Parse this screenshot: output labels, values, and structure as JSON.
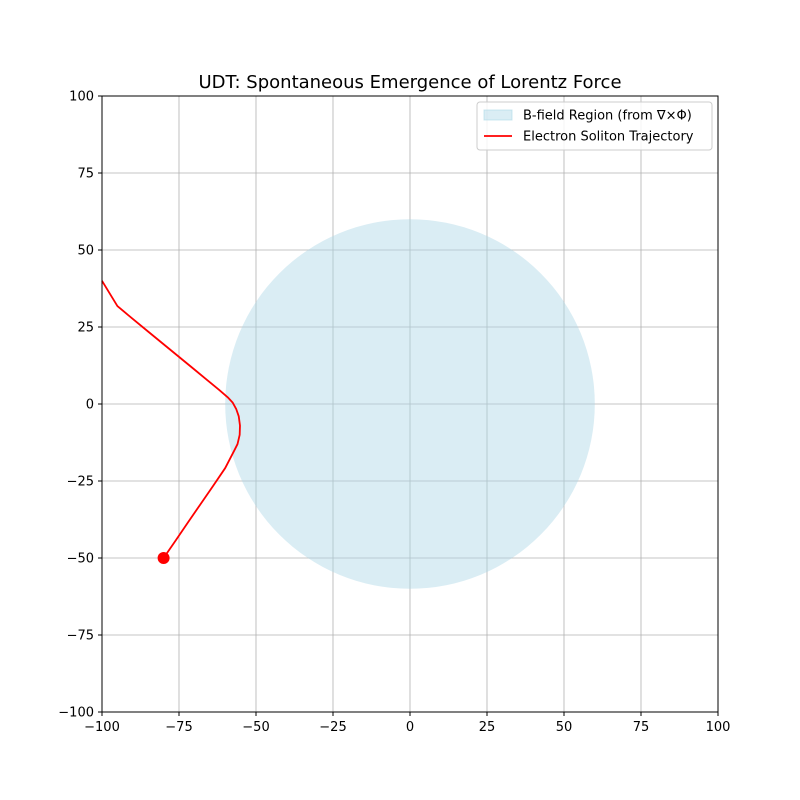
{
  "chart_data": {
    "type": "line",
    "title": "UDT: Spontaneous Emergence of Lorentz Force",
    "xlabel": "",
    "ylabel": "",
    "xlim": [
      -100,
      100
    ],
    "ylim": [
      -100,
      100
    ],
    "x_ticks": [
      -100,
      -75,
      -50,
      -25,
      0,
      25,
      50,
      75,
      100
    ],
    "y_ticks": [
      -100,
      -75,
      -50,
      -25,
      0,
      25,
      50,
      75,
      100
    ],
    "x_tick_labels": [
      "−100",
      "−75",
      "−50",
      "−25",
      "0",
      "25",
      "50",
      "75",
      "100"
    ],
    "y_tick_labels": [
      "−100",
      "−75",
      "−50",
      "−25",
      "0",
      "25",
      "50",
      "75",
      "100"
    ],
    "grid": true,
    "legend_position": "top-right",
    "legend": [
      {
        "label": "B-field Region (from ∇×Φ)",
        "kind": "patch",
        "color": "#add8e6"
      },
      {
        "label": "Electron Soliton Trajectory",
        "kind": "line",
        "color": "#ff0000"
      }
    ],
    "region": {
      "name": "B-field Region (from ∇×Φ)",
      "shape": "circle",
      "center": [
        0,
        0
      ],
      "radius": 60,
      "color": "#add8e6",
      "alpha": 0.45
    },
    "series": [
      {
        "name": "Electron Soliton Trajectory",
        "color": "#ff0000",
        "x": [
          -80,
          -76,
          -72,
          -68,
          -64,
          -60,
          -57,
          -56,
          -55.3,
          -55.2,
          -55.6,
          -56.4,
          -57.6,
          -59,
          -62,
          -66,
          -70,
          -75,
          -80,
          -85,
          -90,
          -95,
          -100
        ],
        "y": [
          -50,
          -44.2,
          -38.3,
          -32.5,
          -26.7,
          -20.8,
          -15,
          -13,
          -10,
          -7,
          -4,
          -1.7,
          0.5,
          2,
          4.6,
          7.9,
          11.2,
          15.3,
          19.4,
          23.5,
          27.6,
          31.8,
          40
        ]
      }
    ],
    "start_marker": {
      "x": -80,
      "y": -50,
      "color": "#ff0000"
    }
  }
}
